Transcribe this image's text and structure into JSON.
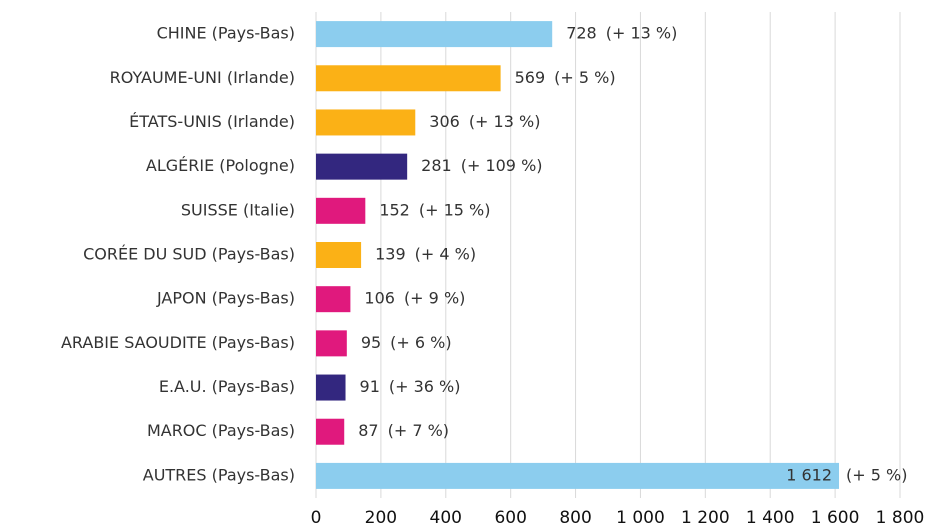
{
  "chart_data": {
    "type": "barh",
    "categories": [
      "CHINE (Pays-Bas)",
      "ROYAUME-UNI (Irlande)",
      "ÉTATS-UNIS (Irlande)",
      "ALGÉRIE (Pologne)",
      "SUISSE (Italie)",
      "CORÉE DU SUD (Pays-Bas)",
      "JAPON (Pays-Bas)",
      "ARABIE SAOUDITE (Pays-Bas)",
      "E.A.U. (Pays-Bas)",
      "MAROC (Pays-Bas)",
      "AUTRES (Pays-Bas)"
    ],
    "values": [
      728,
      569,
      306,
      281,
      152,
      139,
      106,
      95,
      91,
      87,
      1612
    ],
    "value_labels": [
      "728",
      "569",
      "306",
      "281",
      "152",
      "139",
      "106",
      "95",
      "91",
      "87",
      "1 612"
    ],
    "annotations": [
      "(+ 13 %)",
      "(+ 5 %)",
      "(+ 13 %)",
      "(+ 109 %)",
      "(+ 15 %)",
      "(+ 4 %)",
      "(+ 9 %)",
      "(+ 6 %)",
      "(+ 36 %)",
      "(+ 7 %)",
      "(+ 5 %)"
    ],
    "colors": [
      "#8ccdee",
      "#fbb116",
      "#fbb116",
      "#33277f",
      "#e0197d",
      "#fbb116",
      "#e0197d",
      "#e0197d",
      "#33277f",
      "#e0197d",
      "#8ccdee"
    ],
    "xlim": [
      0,
      1800
    ],
    "xticks": [
      0,
      200,
      400,
      600,
      800,
      {
        "value": 1000,
        "label": "1 000"
      },
      {
        "value": 1200,
        "label": "1 200"
      },
      {
        "value": 1400,
        "label": "1 400"
      },
      {
        "value": 1600,
        "label": "1 600"
      },
      {
        "value": 1800,
        "label": "1 800"
      }
    ],
    "grid": true
  }
}
